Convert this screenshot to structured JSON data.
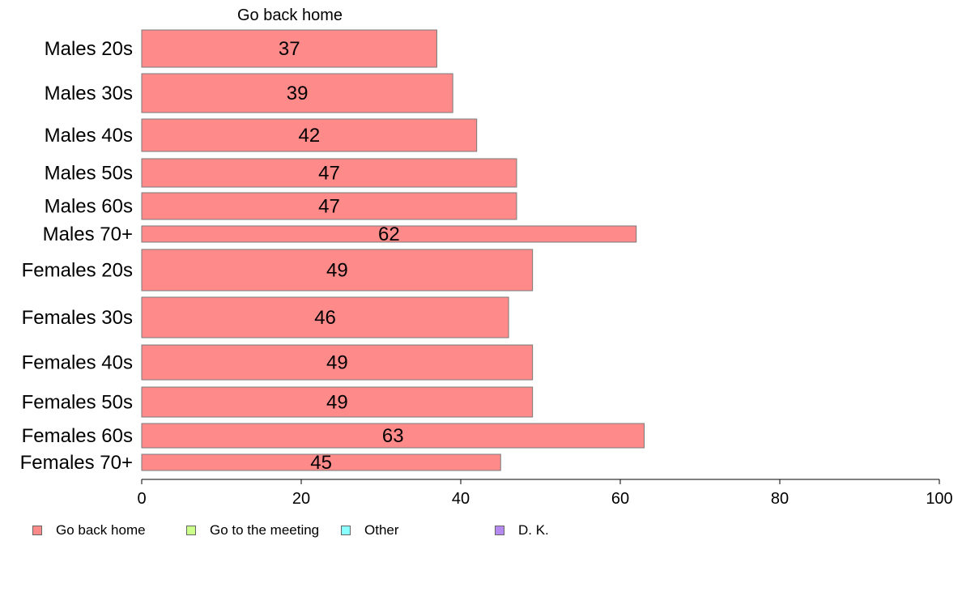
{
  "chart_data": {
    "type": "bar",
    "orientation": "horizontal",
    "title": "Go back home",
    "categories": [
      "Males 20s",
      "Males 30s",
      "Males 40s",
      "Males 50s",
      "Males 60s",
      "Males 70+",
      "Females 20s",
      "Females 30s",
      "Females 40s",
      "Females 50s",
      "Females 60s",
      "Females 70+"
    ],
    "series": [
      {
        "name": "Go back home",
        "color": "#ff8a8a",
        "values": [
          37,
          39,
          42,
          47,
          47,
          62,
          49,
          46,
          49,
          49,
          63,
          45
        ]
      }
    ],
    "xlim": [
      0,
      100
    ],
    "xticks": [
      0,
      20,
      40,
      60,
      80,
      100
    ],
    "grid": false,
    "legend_position": "bottom"
  },
  "legend": [
    {
      "label": "Go back home",
      "color": "#ff8a8a"
    },
    {
      "label": "Go to the meeting",
      "color": "#ccff8a"
    },
    {
      "label": "Other",
      "color": "#8affff"
    },
    {
      "label": "D. K.",
      "color": "#b48af0"
    }
  ]
}
